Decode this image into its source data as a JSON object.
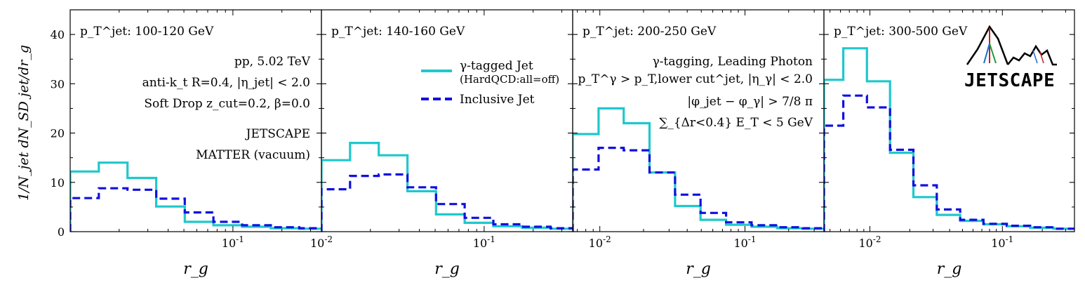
{
  "figure": {
    "ylabel": "1/N_jet dN_SD jet/dr_g",
    "legend": {
      "entries": [
        {
          "label": "γ-tagged Jet",
          "sublabel": "(HardQCD:all=off)",
          "color": "#1fc8cc",
          "style": "solid"
        },
        {
          "label": "Inclusive Jet",
          "sublabel": "",
          "color": "#1010e0",
          "style": "dashed"
        }
      ]
    },
    "annotations": {
      "panel1": [
        "pp, 5.02 TeV",
        "anti-k_t R=0.4, |η_jet| < 2.0",
        "Soft Drop z_cut=0.2, β=0.0",
        "JETSCAPE",
        "MATTER (vacuum)"
      ],
      "panel3": [
        "γ-tagging, Leading Photon",
        "p_T^γ > p_T,lower cut^jet, |η_γ| < 2.0",
        "|φ_jet − φ_γ| > 7/8 π",
        "∑_{Δr<0.4} E_T < 5 GeV"
      ]
    },
    "logo": {
      "text": "JETSCAPE"
    },
    "colors": {
      "gamma": "#1fc8cc",
      "inclusive": "#1010e0"
    }
  },
  "chart_data": [
    {
      "type": "line",
      "panel_title": "p_T^jet: 100-120 GeV",
      "xlabel": "r_g",
      "x_scale": "log",
      "xlim": [
        0.01,
        0.35
      ],
      "ylim": [
        0,
        45
      ],
      "y_ticks": [
        0,
        10,
        20,
        30,
        40
      ],
      "x_ticks": [
        {
          "value": 0.1,
          "label": "10^-1"
        }
      ],
      "bin_edges": [
        0.01,
        0.015,
        0.0225,
        0.0338,
        0.0506,
        0.0759,
        0.114,
        0.171,
        0.256,
        0.35
      ],
      "series": [
        {
          "name": "γ-tagged Jet",
          "values": [
            12.2,
            14.0,
            10.9,
            5.1,
            2.0,
            1.3,
            1.0,
            0.7,
            0.6
          ]
        },
        {
          "name": "Inclusive Jet",
          "values": [
            6.8,
            8.8,
            8.5,
            6.7,
            3.9,
            2.0,
            1.3,
            0.9,
            0.7
          ]
        }
      ]
    },
    {
      "type": "line",
      "panel_title": "p_T^jet: 140-160 GeV",
      "xlabel": "r_g",
      "x_scale": "log",
      "xlim": [
        0.01,
        0.35
      ],
      "ylim": [
        0,
        45
      ],
      "y_ticks": [
        0,
        10,
        20,
        30,
        40
      ],
      "x_ticks": [
        {
          "value": 0.01,
          "label": "10^-2"
        },
        {
          "value": 0.1,
          "label": "10^-1"
        }
      ],
      "bin_edges": [
        0.01,
        0.015,
        0.0225,
        0.0338,
        0.0506,
        0.0759,
        0.114,
        0.171,
        0.256,
        0.35
      ],
      "series": [
        {
          "name": "γ-tagged Jet",
          "values": [
            14.5,
            18.0,
            15.5,
            8.2,
            3.5,
            1.8,
            1.1,
            0.8,
            0.6
          ]
        },
        {
          "name": "Inclusive Jet",
          "values": [
            8.6,
            11.3,
            11.6,
            9.0,
            5.6,
            2.8,
            1.5,
            1.0,
            0.7
          ]
        }
      ]
    },
    {
      "type": "line",
      "panel_title": "p_T^jet: 200-250 GeV",
      "xlabel": "r_g",
      "x_scale": "log",
      "xlim": [
        0.0065,
        0.35
      ],
      "ylim": [
        0,
        45
      ],
      "y_ticks": [
        0,
        10,
        20,
        30,
        40
      ],
      "x_ticks": [
        {
          "value": 0.01,
          "label": "10^-2"
        },
        {
          "value": 0.1,
          "label": "10^-1"
        }
      ],
      "bin_edges": [
        0.0065,
        0.0098,
        0.0146,
        0.022,
        0.033,
        0.0494,
        0.0741,
        0.111,
        0.167,
        0.25,
        0.35
      ],
      "series": [
        {
          "name": "γ-tagged Jet",
          "values": [
            19.8,
            25.0,
            22.0,
            12.0,
            5.2,
            2.4,
            1.4,
            1.0,
            0.7,
            0.6
          ]
        },
        {
          "name": "Inclusive Jet",
          "values": [
            12.6,
            17.0,
            16.5,
            12.0,
            7.5,
            3.8,
            1.9,
            1.3,
            0.9,
            0.7
          ]
        }
      ]
    },
    {
      "type": "line",
      "panel_title": "p_T^jet: 300-500 GeV",
      "xlabel": "r_g",
      "x_scale": "log",
      "xlim": [
        0.0045,
        0.35
      ],
      "ylim": [
        0,
        45
      ],
      "y_ticks": [
        0,
        10,
        20,
        30,
        40
      ],
      "x_ticks": [
        {
          "value": 0.01,
          "label": "10^-2"
        },
        {
          "value": 0.1,
          "label": "10^-1"
        }
      ],
      "bin_edges": [
        0.0045,
        0.0063,
        0.0095,
        0.0142,
        0.0213,
        0.032,
        0.048,
        0.072,
        0.108,
        0.162,
        0.243,
        0.35
      ],
      "series": [
        {
          "name": "γ-tagged Jet",
          "values": [
            30.8,
            37.2,
            30.5,
            16.0,
            7.0,
            3.4,
            2.2,
            1.5,
            1.1,
            0.8,
            0.6
          ]
        },
        {
          "name": "Inclusive Jet",
          "values": [
            21.5,
            27.6,
            25.2,
            16.6,
            9.4,
            4.5,
            2.4,
            1.6,
            1.2,
            0.9,
            0.6
          ]
        }
      ]
    }
  ]
}
